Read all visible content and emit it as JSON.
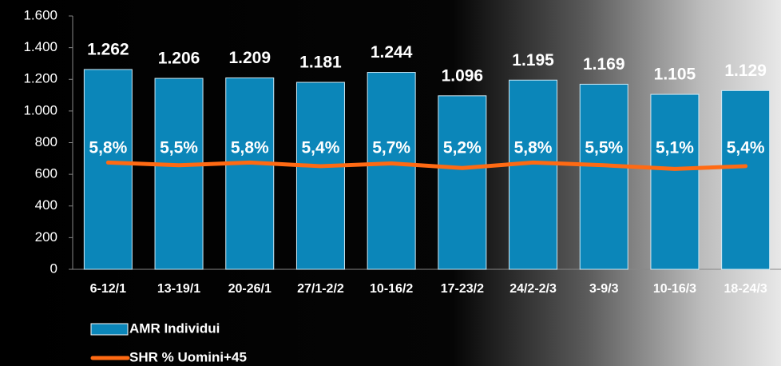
{
  "chart_data": {
    "type": "bar",
    "categories": [
      "6-12/1",
      "13-19/1",
      "20-26/1",
      "27/1-2/2",
      "10-16/2",
      "17-23/2",
      "24/2-2/3",
      "3-9/3",
      "10-16/3",
      "18-24/3"
    ],
    "series": [
      {
        "name": "AMR Individui",
        "type": "bar",
        "color": "#0b86b9",
        "values": [
          1262,
          1206,
          1209,
          1181,
          1244,
          1096,
          1195,
          1169,
          1105,
          1129
        ],
        "value_labels": [
          "1.262",
          "1.206",
          "1.209",
          "1.181",
          "1.244",
          "1.096",
          "1.195",
          "1.169",
          "1.105",
          "1.129"
        ]
      },
      {
        "name": "SHR % Uomini+45",
        "type": "line",
        "axis": "y2",
        "color": "#ff6a13",
        "values": [
          5.8,
          5.5,
          5.8,
          5.4,
          5.7,
          5.2,
          5.8,
          5.5,
          5.1,
          5.4
        ],
        "value_labels": [
          "5,8%",
          "5,5%",
          "5,8%",
          "5,4%",
          "5,7%",
          "5,2%",
          "5,8%",
          "5,5%",
          "5,1%",
          "5,4%"
        ]
      }
    ],
    "ylim": [
      0,
      1600
    ],
    "yticks": [
      0,
      {
        "value": 200,
        "label": "200"
      },
      400,
      600,
      800,
      {
        "value": 1000,
        "label": "1.000"
      },
      {
        "value": 1200,
        "label": "1.200"
      },
      {
        "value": 1400,
        "label": "1.400"
      },
      {
        "value": 1600,
        "label": "1.600"
      }
    ],
    "y2lim": [
      -6,
      22
    ],
    "legend": "bottom-left"
  }
}
